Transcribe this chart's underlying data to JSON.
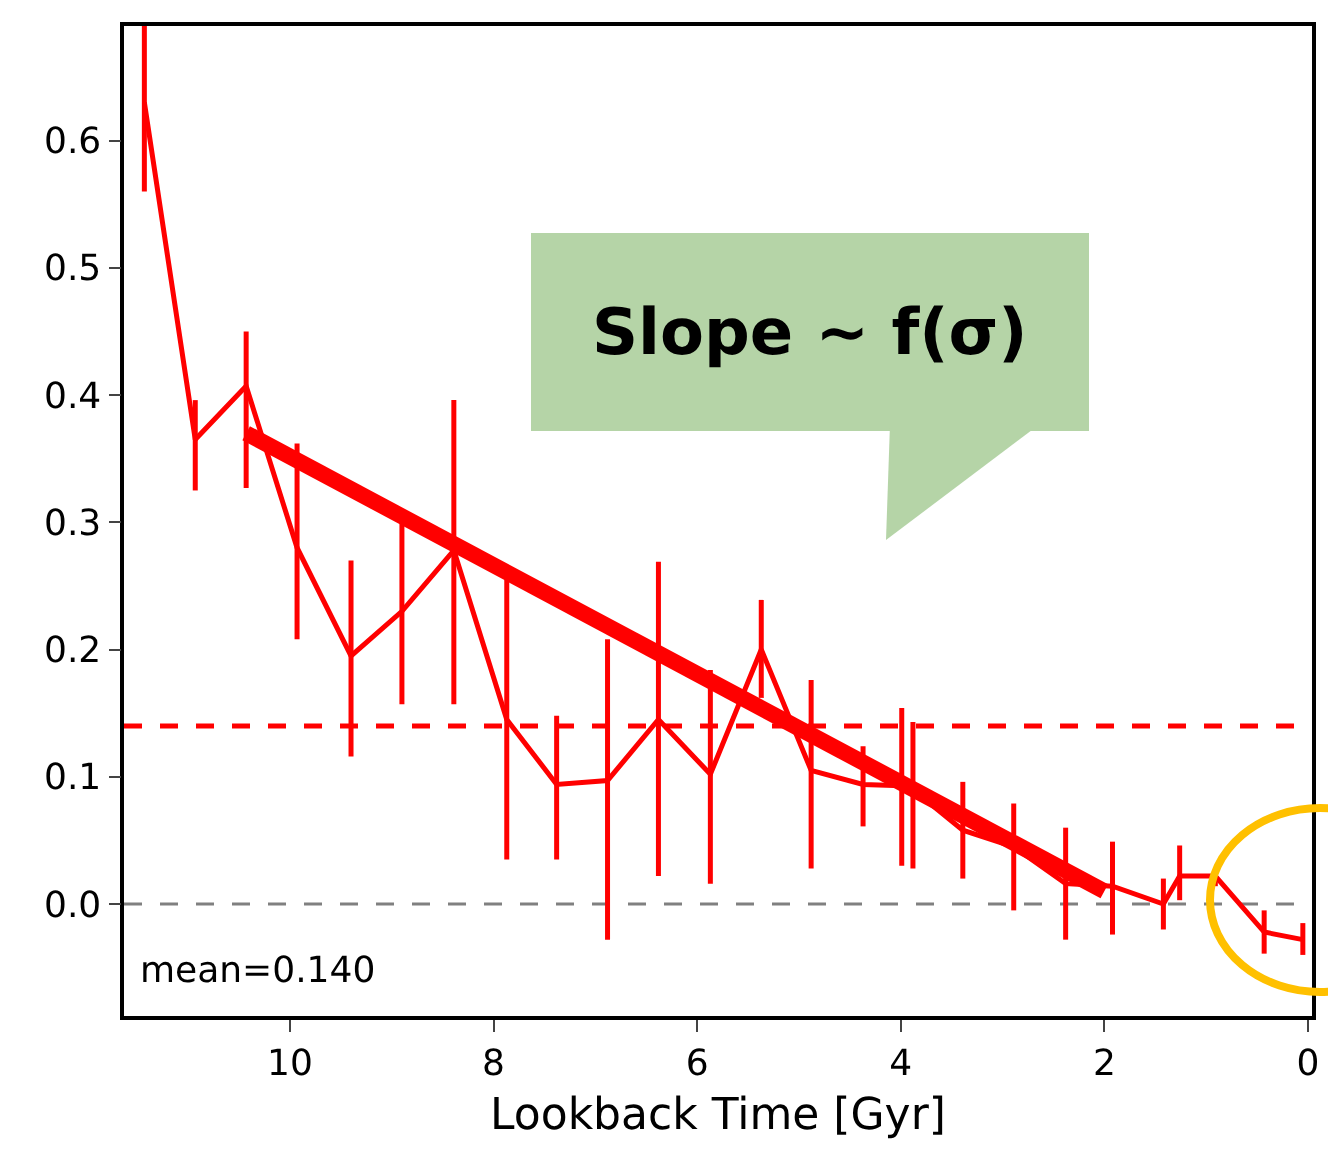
{
  "chart_data": {
    "type": "line",
    "xlabel": "Lookback Time [Gyr]",
    "x": [
      11.43,
      10.93,
      10.43,
      9.93,
      9.4,
      8.9,
      8.39,
      7.87,
      7.38,
      6.88,
      6.38,
      5.87,
      5.37,
      4.88,
      4.37,
      3.99,
      3.88,
      3.39,
      2.89,
      2.38,
      1.92,
      1.42,
      1.26,
      0.91,
      0.43,
      0.05
    ],
    "series": [
      {
        "color": "#ff0000",
        "values": [
          0.63,
          0.365,
          0.407,
          0.28,
          0.195,
          0.23,
          0.278,
          0.145,
          0.094,
          0.097,
          0.145,
          0.102,
          0.2,
          0.105,
          0.094,
          0.093,
          0.09,
          0.058,
          0.045,
          0.016,
          0.014,
          0.0,
          0.022,
          0.022,
          -0.022,
          -0.028
        ],
        "errors": [
          [
            0.56,
            0.69
          ],
          [
            0.325,
            0.396
          ],
          [
            0.327,
            0.45
          ],
          [
            0.208,
            0.362
          ],
          [
            0.116,
            0.27
          ],
          [
            0.157,
            0.299
          ],
          [
            0.157,
            0.396
          ],
          [
            0.035,
            0.255
          ],
          [
            0.035,
            0.148
          ],
          [
            -0.028,
            0.208
          ],
          [
            0.022,
            0.269
          ],
          [
            0.016,
            0.184
          ],
          [
            0.162,
            0.239
          ],
          [
            0.028,
            0.176
          ],
          [
            0.061,
            0.124
          ],
          [
            0.03,
            0.154
          ],
          [
            0.028,
            0.143
          ],
          [
            0.02,
            0.096
          ],
          [
            -0.005,
            0.079
          ],
          [
            -0.028,
            0.06
          ],
          [
            -0.024,
            0.049
          ],
          [
            -0.02,
            0.02
          ],
          [
            0.003,
            0.046
          ],
          [
            0.014,
            0.027
          ],
          [
            -0.039,
            -0.005
          ],
          [
            -0.04,
            -0.015
          ]
        ]
      },
      {
        "type": "line",
        "color": "#ff0000",
        "x": [
          10.43,
          2.0
        ],
        "values": [
          0.37,
          0.01
        ]
      }
    ],
    "xlim": [
      11.63,
      -0.04
    ],
    "xticks": [
      10,
      8,
      6,
      4,
      2,
      0
    ],
    "ylim": [
      -0.088,
      0.69
    ],
    "yticks": [
      {
        "value": 0,
        "label": "0.0"
      },
      0.1,
      0.2,
      0.3,
      0.4,
      0.5,
      0.6
    ],
    "ref_lines": [
      {
        "axis": "y",
        "value": 0.14,
        "color": "#ff0000",
        "line_style": "dashed"
      },
      {
        "axis": "y",
        "value": 0,
        "color": "#808080",
        "line_style": "dashed"
      }
    ],
    "annotations": [
      "Slope ~ f(σ)",
      "mean=0.140"
    ],
    "grid": false,
    "marker": "none",
    "line_style": "solid"
  }
}
